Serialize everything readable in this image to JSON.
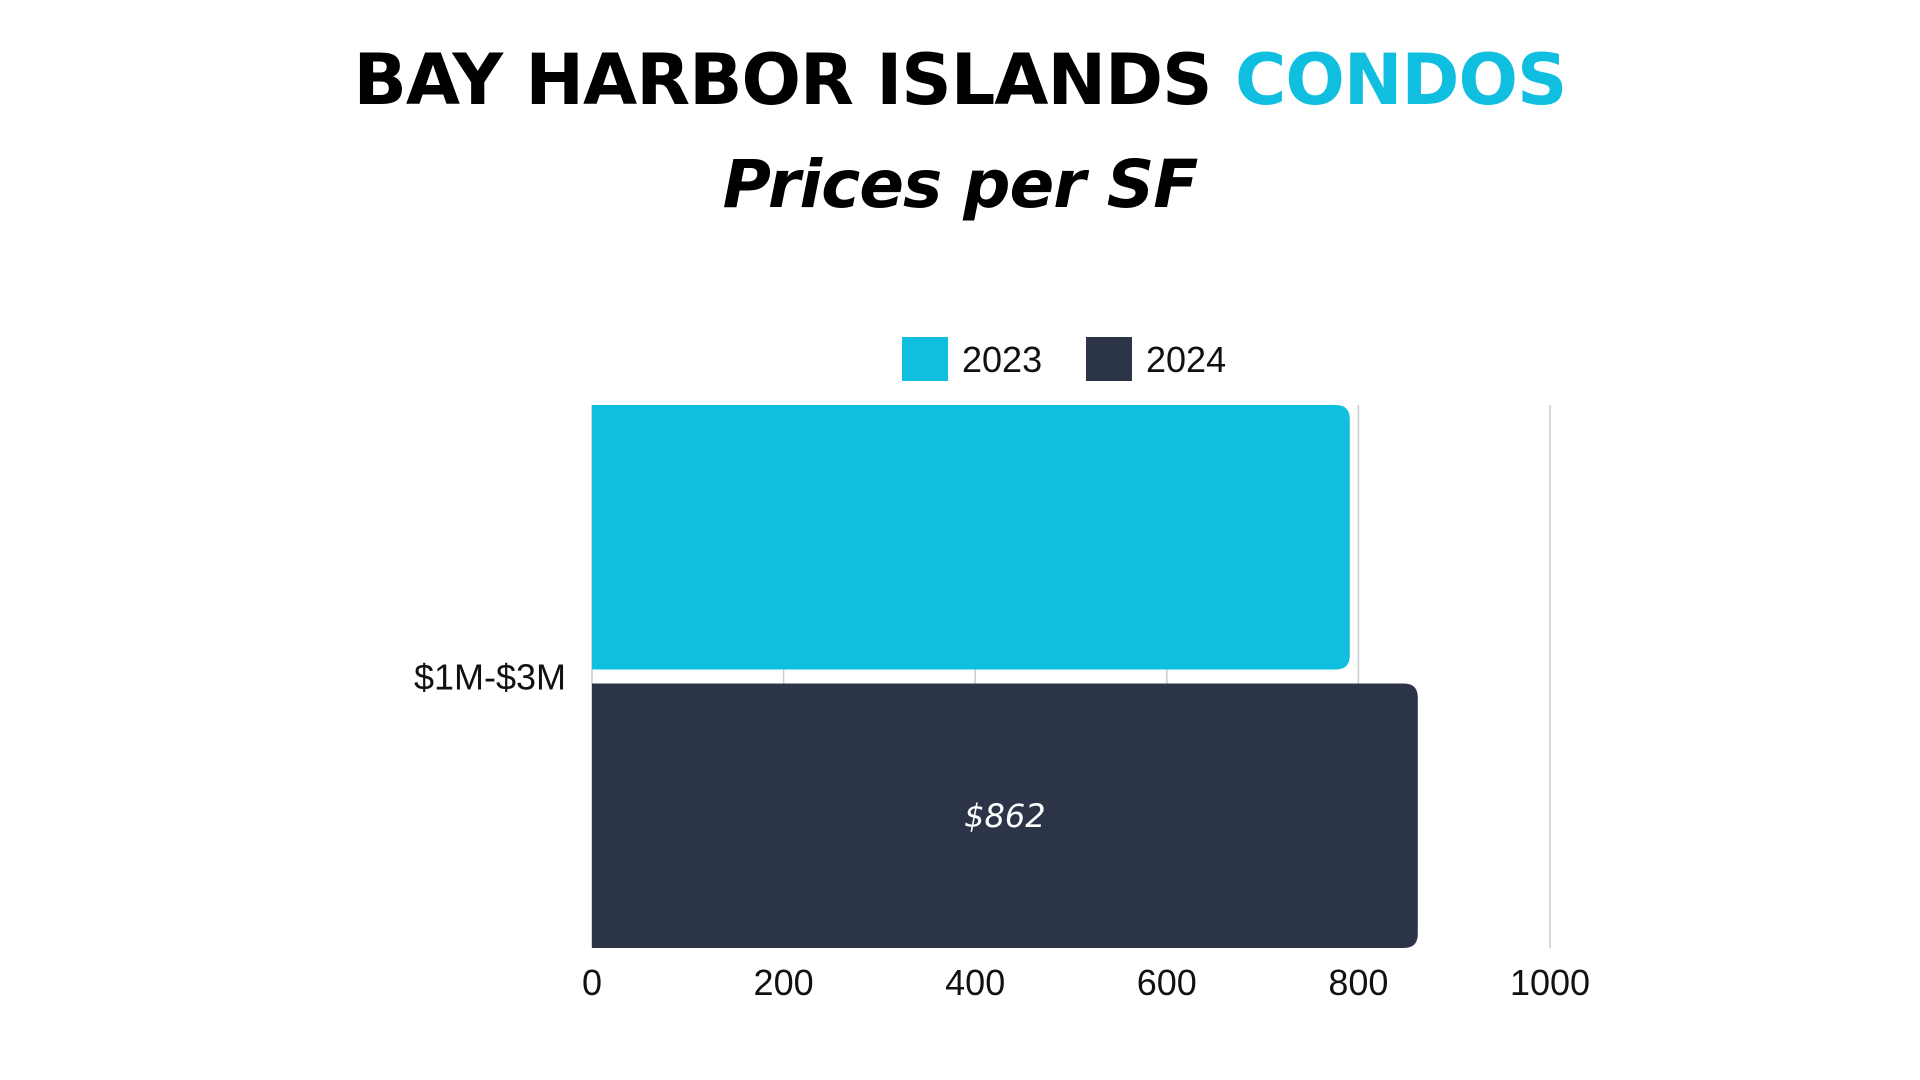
{
  "header": {
    "title_main": "BAY HARBOR ISLANDS",
    "title_accent": "CONDOS",
    "subtitle": "Prices per SF"
  },
  "chart_data": {
    "type": "bar",
    "orientation": "horizontal",
    "categories": [
      "$1M-$3M"
    ],
    "series": [
      {
        "name": "2023",
        "values": [
          791
        ],
        "color": "#10bfdf",
        "label": ""
      },
      {
        "name": "2024",
        "values": [
          862
        ],
        "color": "#2c3548",
        "label": "$862"
      }
    ],
    "xlim": [
      0,
      1000
    ],
    "xticks": [
      "0",
      "200",
      "400",
      "600",
      "800",
      "1000"
    ],
    "grid": "vertical",
    "legend": "top-center"
  }
}
